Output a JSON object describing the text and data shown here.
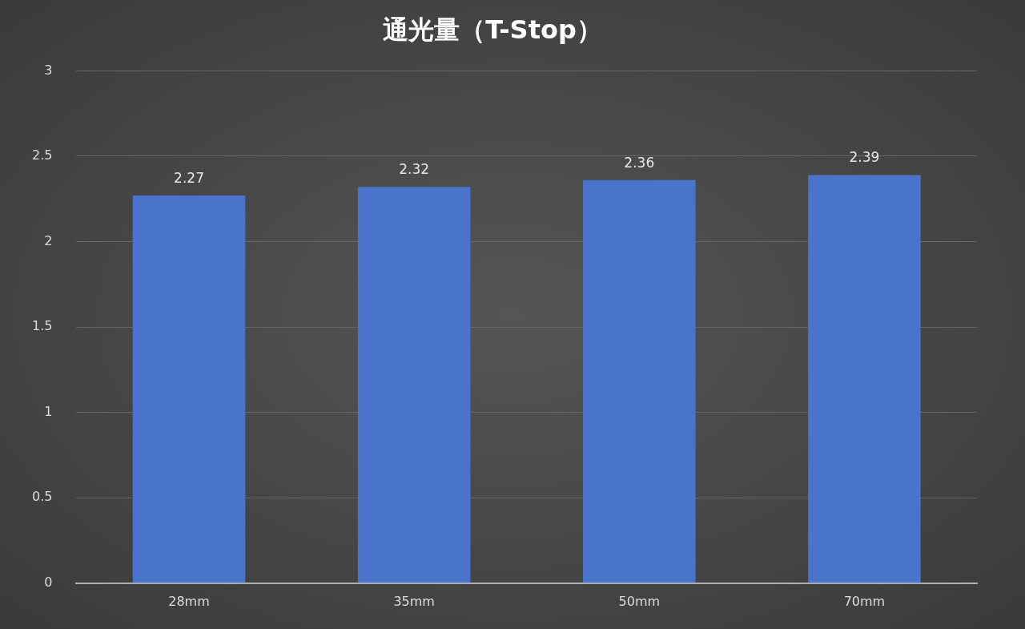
{
  "chart_data": {
    "type": "bar",
    "title": "通光量（T-Stop）",
    "categories": [
      "28mm",
      "35mm",
      "50mm",
      "70mm"
    ],
    "values": [
      2.27,
      2.32,
      2.36,
      2.39
    ],
    "color": "#4a74cc",
    "ylim": [
      0,
      3
    ],
    "yticks": [
      0,
      0.5,
      1,
      1.5,
      2,
      2.5,
      3
    ],
    "grid": "y",
    "data_labels": true,
    "legend": false
  }
}
